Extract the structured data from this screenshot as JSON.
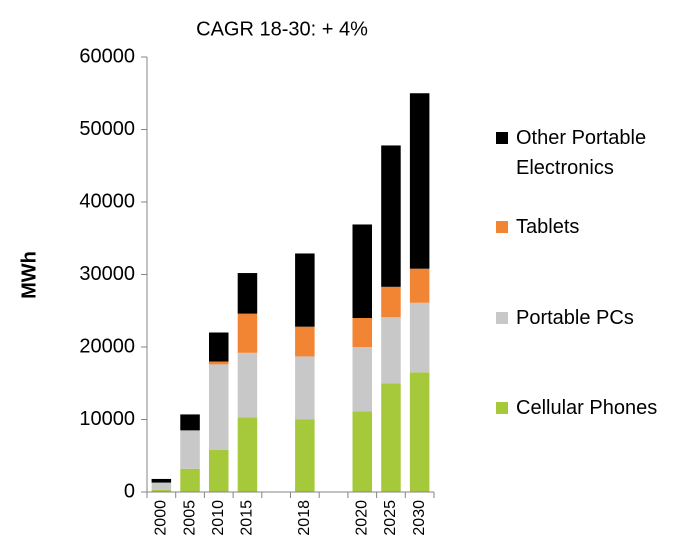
{
  "chart_data": {
    "type": "stacked_bar",
    "title": "CAGR 18-30: + 4%",
    "y_label": "MWh",
    "categories": [
      "2000",
      "2005",
      "2010",
      "2015",
      null,
      "2018",
      null,
      "2020",
      "2025",
      "2030"
    ],
    "series": [
      {
        "name": "Cellular Phones",
        "color": "#a6c93b",
        "values": [
          300,
          3200,
          5800,
          10300,
          null,
          10000,
          null,
          11100,
          15000,
          16500
        ]
      },
      {
        "name": "Portable PCs",
        "color": "#c8c8c8",
        "values": [
          1000,
          5300,
          11800,
          8900,
          null,
          8700,
          null,
          8900,
          9100,
          9600
        ]
      },
      {
        "name": "Tablets",
        "color": "#f28533",
        "values": [
          0,
          0,
          400,
          5400,
          null,
          4100,
          null,
          4000,
          4200,
          4700
        ]
      },
      {
        "name": "Other Portable Electronics",
        "color": "#000000",
        "values": [
          500,
          2200,
          4000,
          5600,
          null,
          10100,
          null,
          12900,
          19500,
          24200
        ]
      }
    ],
    "ylim": [
      0,
      60000
    ],
    "yticks": [
      0,
      10000,
      20000,
      30000,
      40000,
      50000,
      60000
    ]
  }
}
